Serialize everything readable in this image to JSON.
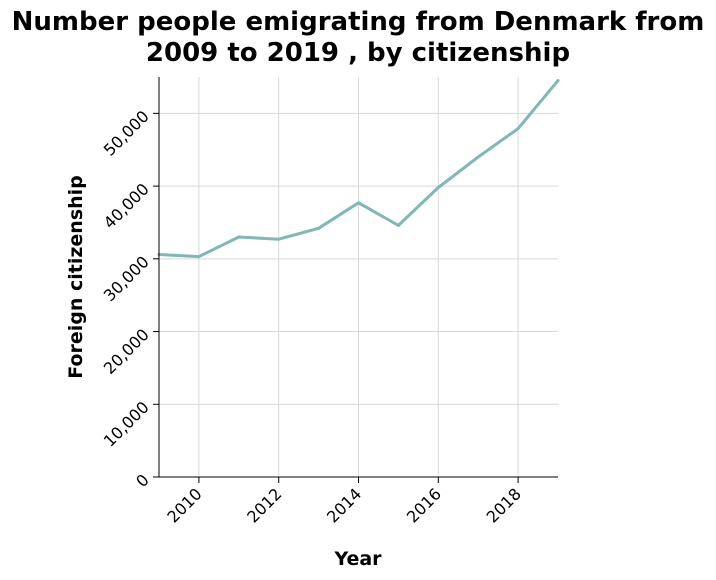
{
  "chart_data": {
    "type": "line",
    "title": "Number people emigrating from Denmark from 2009 to 2019 , by citizenship",
    "title_lines": [
      "Number people emigrating from Denmark from",
      "2009 to 2019 , by citizenship"
    ],
    "xlabel": "Year",
    "ylabel": "Foreign citizenship",
    "xlim": [
      2009,
      2019
    ],
    "ylim": [
      0,
      55000
    ],
    "x_ticks": [
      2010,
      2012,
      2014,
      2016,
      2018
    ],
    "x_tick_labels": [
      "2010",
      "2012",
      "2014",
      "2016",
      "2018"
    ],
    "y_ticks": [
      0,
      10000,
      20000,
      30000,
      40000,
      50000
    ],
    "y_tick_labels": [
      "0",
      "10,000",
      "20,000",
      "30,000",
      "40,000",
      "50,000"
    ],
    "grid": true,
    "series": [
      {
        "color": "#7fb8b5",
        "x": [
          2009,
          2010,
          2011,
          2012,
          2013,
          2014,
          2015,
          2016,
          2017,
          2018,
          2019
        ],
        "values": [
          30600,
          30300,
          33000,
          32700,
          34200,
          37700,
          34600,
          39800,
          44000,
          47900,
          54500
        ]
      }
    ]
  }
}
